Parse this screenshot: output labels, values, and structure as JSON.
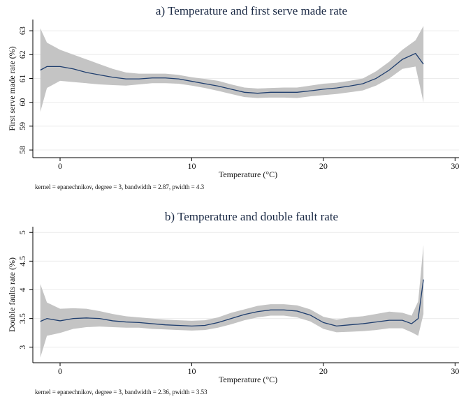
{
  "chart_data": [
    {
      "type": "line",
      "title": "a) Temperature and first serve made rate",
      "x_label": "Temperature (°C)",
      "y_label": "First serve made rate (%)",
      "note": "kernel = epanechnikov, degree = 3, bandwidth = 2.87, pwidth = 4.3",
      "x": [
        -1.5,
        -1,
        0,
        1,
        2,
        3,
        4,
        5,
        6,
        7,
        8,
        9,
        10,
        11,
        12,
        13,
        14,
        15,
        16,
        17,
        18,
        19,
        20,
        21,
        22,
        23,
        24,
        25,
        26,
        27,
        27.6
      ],
      "values": [
        61.35,
        61.5,
        61.5,
        61.4,
        61.25,
        61.15,
        61.05,
        60.98,
        60.98,
        61.02,
        61.02,
        60.98,
        60.88,
        60.78,
        60.68,
        60.55,
        60.42,
        60.38,
        60.42,
        60.42,
        60.42,
        60.48,
        60.55,
        60.6,
        60.68,
        60.78,
        61.0,
        61.35,
        61.8,
        62.05,
        61.6
      ],
      "upper": [
        63.1,
        62.5,
        62.2,
        62.0,
        61.8,
        61.6,
        61.4,
        61.25,
        61.2,
        61.2,
        61.2,
        61.15,
        61.05,
        60.98,
        60.9,
        60.75,
        60.62,
        60.58,
        60.6,
        60.62,
        60.62,
        60.7,
        60.78,
        60.82,
        60.9,
        61.0,
        61.3,
        61.7,
        62.2,
        62.6,
        63.2
      ],
      "lower": [
        59.6,
        60.6,
        60.9,
        60.85,
        60.8,
        60.75,
        60.72,
        60.7,
        60.75,
        60.8,
        60.8,
        60.78,
        60.7,
        60.6,
        60.48,
        60.35,
        60.22,
        60.18,
        60.2,
        60.2,
        60.18,
        60.25,
        60.3,
        60.35,
        60.42,
        60.5,
        60.7,
        61.0,
        61.4,
        61.5,
        60.0
      ],
      "xlim": [
        -2.07,
        30.3
      ],
      "ylim": [
        57.68,
        63.47
      ],
      "xticks": [
        0,
        10,
        20,
        30
      ],
      "yticks": [
        58,
        59,
        60,
        61,
        62,
        63
      ],
      "color": "#1f3e6e",
      "band_color": "#c4c4c4",
      "grid": true
    },
    {
      "type": "line",
      "title": "b) Temperature and double fault rate",
      "x_label": "Temperature (°C)",
      "y_label": "Double faults rate (%)",
      "note": "kernel = epanechnikov, degree = 3, bandwidth = 2.36, pwidth = 3.53",
      "x": [
        -1.5,
        -1,
        0,
        1,
        2,
        3,
        4,
        5,
        6,
        7,
        8,
        9,
        10,
        11,
        12,
        13,
        14,
        15,
        16,
        17,
        18,
        19,
        20,
        21,
        22,
        23,
        24,
        25,
        26,
        26.7,
        27.2,
        27.6
      ],
      "values": [
        3.45,
        3.5,
        3.46,
        3.5,
        3.51,
        3.5,
        3.46,
        3.44,
        3.43,
        3.41,
        3.39,
        3.38,
        3.37,
        3.38,
        3.43,
        3.5,
        3.57,
        3.62,
        3.65,
        3.65,
        3.63,
        3.56,
        3.43,
        3.37,
        3.39,
        3.41,
        3.44,
        3.47,
        3.47,
        3.41,
        3.5,
        4.18
      ],
      "upper": [
        4.1,
        3.78,
        3.67,
        3.68,
        3.67,
        3.63,
        3.58,
        3.54,
        3.52,
        3.5,
        3.48,
        3.47,
        3.46,
        3.47,
        3.52,
        3.6,
        3.66,
        3.72,
        3.75,
        3.75,
        3.73,
        3.66,
        3.53,
        3.48,
        3.52,
        3.54,
        3.58,
        3.62,
        3.6,
        3.55,
        3.8,
        4.78
      ],
      "lower": [
        2.82,
        3.2,
        3.25,
        3.32,
        3.35,
        3.36,
        3.35,
        3.34,
        3.34,
        3.32,
        3.31,
        3.3,
        3.29,
        3.3,
        3.34,
        3.4,
        3.47,
        3.52,
        3.55,
        3.55,
        3.52,
        3.45,
        3.32,
        3.26,
        3.27,
        3.28,
        3.3,
        3.33,
        3.33,
        3.26,
        3.2,
        3.58
      ],
      "xlim": [
        -2.07,
        30.3
      ],
      "ylim": [
        2.73,
        5.1
      ],
      "xticks": [
        0,
        10,
        20,
        30
      ],
      "yticks": [
        3,
        3.5,
        4,
        4.5,
        5
      ],
      "color": "#1f3e6e",
      "band_color": "#c4c4c4",
      "grid": true
    }
  ]
}
